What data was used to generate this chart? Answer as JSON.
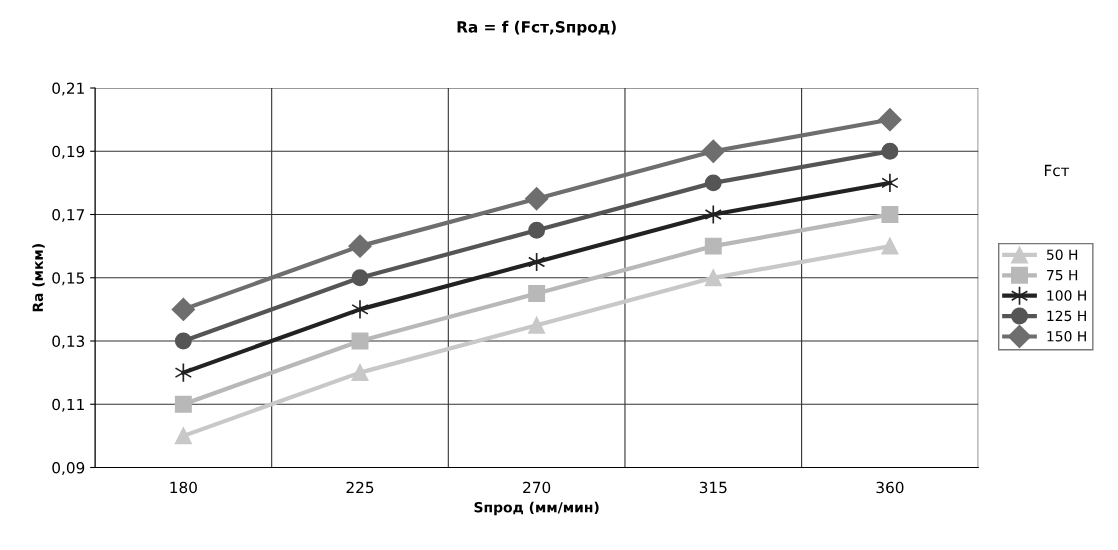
{
  "chart_data": {
    "type": "line",
    "title": "Ra = f (Fст,Sпрод)",
    "xlabel": "Sпрод (мм/мин)",
    "ylabel": "Ra (мкм)",
    "legend_title": "Fст",
    "categories": [
      "180",
      "225",
      "270",
      "315",
      "360"
    ],
    "series": [
      {
        "name": "50 H",
        "color": "#c8c8c8",
        "marker": "triangle",
        "values": [
          0.1,
          0.12,
          0.135,
          0.15,
          0.16
        ]
      },
      {
        "name": "75 H",
        "color": "#b8b8b8",
        "marker": "square",
        "values": [
          0.11,
          0.13,
          0.145,
          0.16,
          0.17
        ]
      },
      {
        "name": "100 H",
        "color": "#222222",
        "marker": "cross",
        "values": [
          0.12,
          0.14,
          0.155,
          0.17,
          0.18
        ]
      },
      {
        "name": "125 H",
        "color": "#555555",
        "marker": "circle",
        "values": [
          0.13,
          0.15,
          0.165,
          0.18,
          0.19
        ]
      },
      {
        "name": "150 H",
        "color": "#6e6e6e",
        "marker": "diamond",
        "values": [
          0.14,
          0.16,
          0.175,
          0.19,
          0.2
        ]
      }
    ],
    "ylim": [
      0.09,
      0.21
    ],
    "yticks": [
      {
        "value": 0.09,
        "label": "0,09"
      },
      {
        "value": 0.11,
        "label": "0,11"
      },
      {
        "value": 0.13,
        "label": "0,13"
      },
      {
        "value": 0.15,
        "label": "0,15"
      },
      {
        "value": 0.17,
        "label": "0,17"
      },
      {
        "value": 0.19,
        "label": "0,19"
      },
      {
        "value": 0.21,
        "label": "0,21"
      }
    ],
    "grid": true,
    "legend": "right",
    "line_style": "solid"
  }
}
